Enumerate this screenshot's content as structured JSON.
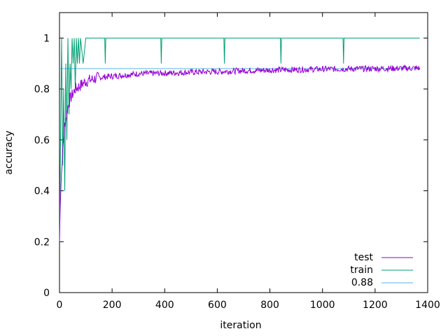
{
  "chart_data": {
    "type": "line",
    "title": "",
    "xlabel": "iteration",
    "ylabel": "accuracy",
    "xlim": [
      0,
      1400
    ],
    "ylim": [
      0,
      1.1
    ],
    "x_ticks": [
      0,
      200,
      400,
      600,
      800,
      1000,
      1200,
      1400
    ],
    "x_tick_labels": [
      "0",
      "200",
      "400",
      "600",
      "800",
      "1000",
      "1200",
      "1400"
    ],
    "y_ticks": [
      0,
      0.2,
      0.4,
      0.6,
      0.8,
      1
    ],
    "y_tick_labels": [
      "0",
      "0.2",
      "0.4",
      "0.6",
      "0.8",
      "1"
    ],
    "grid": false,
    "legend_position": "bottom-right",
    "series": [
      {
        "name": "test",
        "color": "#9400d3",
        "points": [
          [
            0,
            0.2
          ],
          [
            3,
            0.36
          ],
          [
            6,
            0.43
          ],
          [
            10,
            0.52
          ],
          [
            15,
            0.6
          ],
          [
            20,
            0.66
          ],
          [
            30,
            0.72
          ],
          [
            40,
            0.76
          ],
          [
            50,
            0.78
          ],
          [
            60,
            0.8
          ],
          [
            75,
            0.81
          ],
          [
            100,
            0.83
          ],
          [
            150,
            0.845
          ],
          [
            200,
            0.85
          ],
          [
            250,
            0.855
          ],
          [
            300,
            0.86
          ],
          [
            400,
            0.862
          ],
          [
            500,
            0.866
          ],
          [
            600,
            0.868
          ],
          [
            700,
            0.872
          ],
          [
            800,
            0.874
          ],
          [
            900,
            0.876
          ],
          [
            1000,
            0.878
          ],
          [
            1100,
            0.879
          ],
          [
            1200,
            0.88
          ],
          [
            1300,
            0.881
          ],
          [
            1370,
            0.882
          ]
        ],
        "noise": 0.012
      },
      {
        "name": "train",
        "color": "#009e73",
        "points": [
          [
            0,
            0.2
          ],
          [
            4,
            0.6
          ],
          [
            8,
            1.0
          ],
          [
            12,
            0.5
          ],
          [
            16,
            0.8
          ],
          [
            20,
            0.4
          ],
          [
            24,
            0.9
          ],
          [
            28,
            0.6
          ],
          [
            32,
            1.0
          ],
          [
            36,
            0.7
          ],
          [
            40,
            0.9
          ],
          [
            44,
            0.8
          ],
          [
            48,
            1.0
          ],
          [
            52,
            0.9
          ],
          [
            56,
            1.0
          ],
          [
            60,
            0.8
          ],
          [
            64,
            1.0
          ],
          [
            68,
            0.9
          ],
          [
            72,
            1.0
          ],
          [
            76,
            0.9
          ],
          [
            80,
            1.0
          ],
          [
            90,
            0.9
          ],
          [
            100,
            1.0
          ],
          [
            172,
            1.0
          ],
          [
            174,
            0.9
          ],
          [
            176,
            1.0
          ],
          [
            385,
            1.0
          ],
          [
            387,
            0.9
          ],
          [
            389,
            1.0
          ],
          [
            625,
            1.0
          ],
          [
            627,
            0.9
          ],
          [
            629,
            1.0
          ],
          [
            840,
            1.0
          ],
          [
            842,
            0.9
          ],
          [
            844,
            1.0
          ],
          [
            1078,
            1.0
          ],
          [
            1080,
            0.9
          ],
          [
            1082,
            1.0
          ],
          [
            1370,
            1.0
          ]
        ]
      },
      {
        "name": "0.88",
        "color": "#56b4e9",
        "points": [
          [
            0,
            0.88
          ],
          [
            1370,
            0.88
          ]
        ]
      }
    ]
  }
}
